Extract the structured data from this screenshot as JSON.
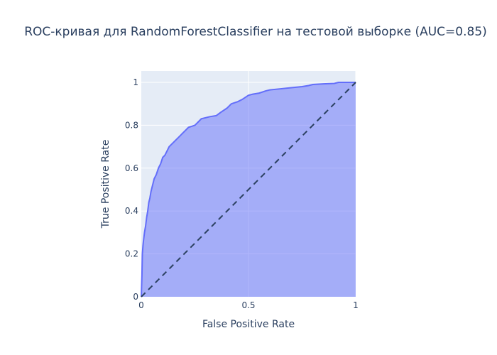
{
  "chart_data": {
    "type": "area",
    "title": "ROC-кривая для RandomForestClassifier на тестовой выборке (AUC=0.85)",
    "xlabel": "False Positive Rate",
    "ylabel": "True Positive Rate",
    "xlim": [
      0,
      1
    ],
    "ylim": [
      0,
      1
    ],
    "x_ticks": [
      0,
      0.5,
      1
    ],
    "x_tick_labels": [
      "0",
      "0.5",
      "1"
    ],
    "y_ticks": [
      0,
      0.2,
      0.4,
      0.6,
      0.8,
      1
    ],
    "y_tick_labels": [
      "0",
      "0.2",
      "0.4",
      "0.6",
      "0.8",
      "1"
    ],
    "grid": true,
    "series": [
      {
        "type": "area",
        "fill": "tozeroy",
        "color": "#636efa",
        "fill_color": "rgba(99,110,250,0.5)",
        "x": [
          0,
          0.003,
          0.005,
          0.008,
          0.01,
          0.015,
          0.02,
          0.025,
          0.03,
          0.035,
          0.04,
          0.045,
          0.05,
          0.06,
          0.07,
          0.08,
          0.09,
          0.1,
          0.11,
          0.12,
          0.13,
          0.14,
          0.15,
          0.17,
          0.19,
          0.21,
          0.22,
          0.25,
          0.27,
          0.28,
          0.3,
          0.32,
          0.35,
          0.37,
          0.4,
          0.42,
          0.45,
          0.47,
          0.5,
          0.52,
          0.55,
          0.58,
          0.6,
          0.65,
          0.7,
          0.75,
          0.78,
          0.8,
          0.85,
          0.9,
          0.92,
          0.95,
          0.97,
          1.0
        ],
        "y": [
          0,
          0.1,
          0.2,
          0.24,
          0.26,
          0.3,
          0.33,
          0.37,
          0.4,
          0.44,
          0.46,
          0.49,
          0.51,
          0.55,
          0.57,
          0.6,
          0.62,
          0.65,
          0.66,
          0.68,
          0.7,
          0.71,
          0.72,
          0.74,
          0.76,
          0.78,
          0.79,
          0.8,
          0.82,
          0.83,
          0.835,
          0.84,
          0.845,
          0.86,
          0.88,
          0.9,
          0.91,
          0.92,
          0.94,
          0.945,
          0.95,
          0.96,
          0.965,
          0.97,
          0.975,
          0.98,
          0.985,
          0.99,
          0.993,
          0.995,
          1.0,
          1.0,
          1.0,
          1.0
        ]
      },
      {
        "type": "line",
        "dash": "dash",
        "color": "#2a3f5f",
        "x": [
          0,
          1
        ],
        "y": [
          0,
          1
        ]
      }
    ]
  }
}
